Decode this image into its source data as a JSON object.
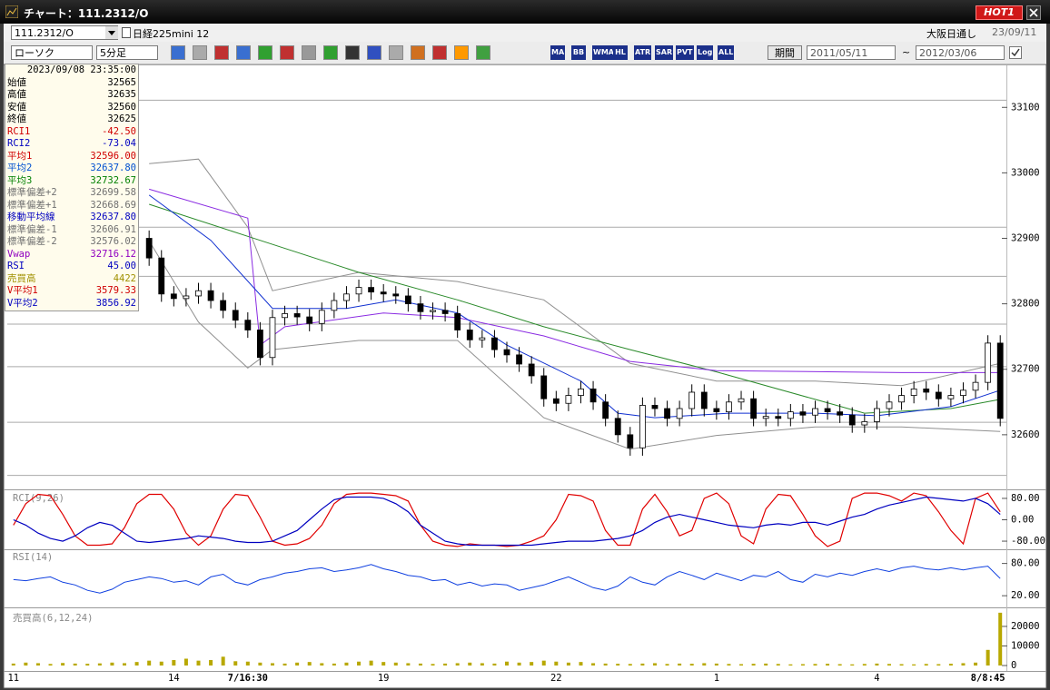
{
  "window": {
    "title": "チャート：111.2312/O",
    "hot_button": "HOT1"
  },
  "symbol_bar": {
    "code": "111.2312/O",
    "name": "日経225mini 12",
    "market": "大阪日通し",
    "date": "23/09/11"
  },
  "toolbar": {
    "chart_style": "ローソク",
    "interval": "5分足",
    "icons": [
      "MA",
      "BB",
      "WMA",
      "HL",
      "ATR",
      "SAR",
      "PVT",
      "Log",
      "ALL"
    ],
    "period_button": "期間",
    "start_date": "2011/05/11",
    "range_sep": "~",
    "end_date": "2012/03/06"
  },
  "info_panel": {
    "datetime": "2023/09/08 23:35:00",
    "rows": [
      {
        "label": "始値",
        "value": "32565",
        "color": "#000000"
      },
      {
        "label": "高値",
        "value": "32635",
        "color": "#000000"
      },
      {
        "label": "安値",
        "value": "32560",
        "color": "#000000"
      },
      {
        "label": "終値",
        "value": "32625",
        "color": "#000000"
      },
      {
        "label": "RCI1",
        "value": "-42.50",
        "color": "#d00000"
      },
      {
        "label": "RCI2",
        "value": "-73.04",
        "color": "#0000c0"
      },
      {
        "label": "平均1",
        "value": "32596.00",
        "color": "#d00000"
      },
      {
        "label": "平均2",
        "value": "32637.80",
        "color": "#0050d0"
      },
      {
        "label": "平均3",
        "value": "32732.67",
        "color": "#008000"
      },
      {
        "label": "標準偏差+2",
        "value": "32699.58",
        "color": "#707070"
      },
      {
        "label": "標準偏差+1",
        "value": "32668.69",
        "color": "#707070"
      },
      {
        "label": "移動平均線",
        "value": "32637.80",
        "color": "#0000c0"
      },
      {
        "label": "標準偏差-1",
        "value": "32606.91",
        "color": "#707070"
      },
      {
        "label": "標準偏差-2",
        "value": "32576.02",
        "color": "#707070"
      },
      {
        "label": "Vwap",
        "value": "32716.12",
        "color": "#9000c0"
      },
      {
        "label": "RSI",
        "value": "45.00",
        "color": "#0000c0"
      },
      {
        "label": "売買高",
        "value": "4422",
        "color": "#a09000"
      },
      {
        "label": "V平均1",
        "value": "3579.33",
        "color": "#d00000"
      },
      {
        "label": "V平均2",
        "value": "3856.92",
        "color": "#0000c0"
      }
    ]
  },
  "chart_data": {
    "type": "candlestick",
    "categories": [
      "11",
      null,
      null,
      null,
      null,
      null,
      null,
      null,
      null,
      null,
      null,
      null,
      null,
      "14",
      null,
      null,
      null,
      null,
      null,
      "7/16:30",
      null,
      null,
      null,
      null,
      null,
      null,
      null,
      null,
      null,
      null,
      "19",
      null,
      null,
      null,
      null,
      null,
      null,
      null,
      null,
      null,
      null,
      null,
      null,
      null,
      "22",
      null,
      null,
      null,
      null,
      null,
      null,
      null,
      null,
      null,
      null,
      null,
      null,
      "1",
      null,
      null,
      null,
      null,
      null,
      null,
      null,
      null,
      null,
      null,
      null,
      null,
      "4",
      null,
      null,
      null,
      null,
      null,
      null,
      null,
      null,
      "8/8:45",
      null
    ],
    "open": [
      null,
      null,
      null,
      null,
      null,
      null,
      null,
      null,
      null,
      null,
      null,
      32900,
      32870,
      32815,
      32808,
      32812,
      32820,
      32805,
      32790,
      32775,
      32760,
      32718,
      32779,
      32785,
      32780,
      32770,
      32790,
      32805,
      32815,
      32825,
      32818,
      32815,
      32812,
      32800,
      32788,
      32790,
      32785,
      32760,
      32745,
      32748,
      32730,
      32722,
      32708,
      32690,
      32655,
      32648,
      32660,
      32670,
      32650,
      32625,
      32600,
      32580,
      32645,
      32640,
      32625,
      32640,
      32665,
      32640,
      32635,
      32650,
      32655,
      32625,
      32628,
      32625,
      32635,
      32630,
      32640,
      32635,
      32630,
      32615,
      32620,
      32640,
      32650,
      32660,
      32670,
      32665,
      32655,
      32660,
      32668,
      32680,
      32740
    ],
    "high": [
      null,
      null,
      null,
      null,
      null,
      null,
      null,
      null,
      null,
      null,
      null,
      32912,
      32882,
      32827,
      32824,
      32832,
      32832,
      32817,
      32802,
      32787,
      32772,
      32791,
      32797,
      32797,
      32792,
      32802,
      32817,
      32827,
      32837,
      32837,
      32830,
      32827,
      32824,
      32812,
      32802,
      32802,
      32797,
      32772,
      32760,
      32760,
      32742,
      32734,
      32720,
      32702,
      32667,
      32672,
      32682,
      32682,
      32662,
      32637,
      32612,
      32657,
      32657,
      32652,
      32652,
      32677,
      32677,
      32652,
      32662,
      32667,
      32667,
      32640,
      32640,
      32647,
      32647,
      32652,
      32652,
      32647,
      32642,
      32632,
      32652,
      32662,
      32672,
      32682,
      32682,
      32677,
      32672,
      32680,
      32692,
      32752,
      32752
    ],
    "low": [
      null,
      null,
      null,
      null,
      null,
      null,
      null,
      null,
      null,
      null,
      null,
      32858,
      32803,
      32796,
      32796,
      32800,
      32793,
      32778,
      32763,
      32748,
      32706,
      32706,
      32767,
      32768,
      32758,
      32758,
      32778,
      32793,
      32803,
      32806,
      32803,
      32800,
      32788,
      32776,
      32776,
      32773,
      32748,
      32733,
      32733,
      32718,
      32710,
      32696,
      32678,
      32643,
      32636,
      32636,
      32648,
      32638,
      32613,
      32588,
      32568,
      32568,
      32628,
      32613,
      32613,
      32628,
      32628,
      32623,
      32623,
      32638,
      32613,
      32613,
      32613,
      32613,
      32618,
      32618,
      32623,
      32618,
      32603,
      32603,
      32608,
      32628,
      32638,
      32648,
      32653,
      32643,
      32643,
      32648,
      32656,
      32668,
      32613
    ],
    "close": [
      null,
      null,
      null,
      null,
      null,
      null,
      null,
      null,
      null,
      null,
      null,
      32870,
      32815,
      32808,
      32812,
      32820,
      32805,
      32790,
      32775,
      32760,
      32718,
      32779,
      32785,
      32780,
      32770,
      32790,
      32805,
      32815,
      32825,
      32818,
      32815,
      32812,
      32800,
      32788,
      32790,
      32785,
      32760,
      32745,
      32748,
      32730,
      32722,
      32708,
      32690,
      32655,
      32648,
      32660,
      32670,
      32650,
      32625,
      32600,
      32580,
      32645,
      32640,
      32625,
      32640,
      32665,
      32640,
      32635,
      32650,
      32655,
      32625,
      32628,
      32625,
      32635,
      32630,
      32640,
      32635,
      32630,
      32615,
      32620,
      32640,
      32650,
      32660,
      32670,
      32665,
      32655,
      32660,
      32668,
      32680,
      32740,
      32625
    ],
    "up_color": "#ffffff",
    "down_color": "#000000",
    "ylim": [
      32518,
      33160
    ],
    "yticks": [
      32600,
      32700,
      32800,
      32900,
      33000,
      33100
    ],
    "hlines": [
      33111,
      32917,
      32842,
      32769,
      32704,
      32619,
      32538
    ],
    "overlays": [
      {
        "color": "#909090",
        "x": [
          11,
          15,
          19,
          21,
          28,
          36,
          43,
          50,
          57,
          65,
          72,
          80
        ],
        "values": [
          33014,
          33021,
          32917,
          32820,
          32848,
          32834,
          32806,
          32709,
          32682,
          32682,
          32675,
          32709
        ]
      },
      {
        "color": "#909090",
        "x": [
          11,
          15,
          19,
          21,
          28,
          36,
          43,
          50,
          57,
          65,
          72,
          80
        ],
        "values": [
          32896,
          32772,
          32702,
          32730,
          32744,
          32744,
          32626,
          32578,
          32599,
          32612,
          32612,
          32605
        ]
      },
      {
        "color": "#2a8a2a",
        "x": [
          11,
          19,
          28,
          36,
          43,
          50,
          57,
          65,
          69,
          76,
          80
        ],
        "values": [
          32952,
          32903,
          32848,
          32806,
          32765,
          32730,
          32696,
          32654,
          32633,
          32640,
          32654
        ]
      },
      {
        "color": "#8a2be2",
        "x": [
          11,
          19,
          20,
          22,
          30,
          36,
          43,
          50,
          57,
          72,
          80
        ],
        "values": [
          32975,
          32931,
          32737,
          32765,
          32786,
          32779,
          32751,
          32712,
          32698,
          32695,
          32695
        ]
      },
      {
        "color": "#1030d0",
        "x": [
          11,
          16,
          21,
          27,
          31,
          36,
          40,
          46,
          49,
          52,
          58,
          65,
          70,
          76,
          80
        ],
        "values": [
          32966,
          32897,
          32793,
          32793,
          32806,
          32786,
          32737,
          32682,
          32633,
          32626,
          32633,
          32633,
          32629,
          32643,
          32668
        ]
      }
    ],
    "panels": {
      "rci": {
        "label": "RCI(9,26)",
        "ylim": [
          -107,
          107
        ],
        "yticks": [
          {
            "value": 80,
            "label": "80.00"
          },
          {
            "value": 0,
            "label": "0.00"
          },
          {
            "value": -80,
            "label": "-80.00"
          }
        ],
        "series": [
          {
            "color": "#e00000",
            "values": [
              -20,
              60,
              95,
              90,
              20,
              -60,
              -95,
              -95,
              -90,
              -30,
              60,
              95,
              95,
              40,
              -50,
              -95,
              -60,
              40,
              95,
              90,
              10,
              -80,
              -95,
              -90,
              -70,
              -20,
              60,
              95,
              100,
              100,
              95,
              90,
              70,
              -20,
              -80,
              -95,
              -100,
              -90,
              -95,
              -95,
              -100,
              -95,
              -80,
              -60,
              0,
              95,
              90,
              70,
              -40,
              -95,
              -95,
              40,
              95,
              30,
              -60,
              -40,
              80,
              100,
              60,
              -60,
              -90,
              40,
              95,
              90,
              20,
              -60,
              -100,
              -80,
              80,
              100,
              100,
              90,
              70,
              100,
              90,
              30,
              -40,
              -90,
              80,
              100,
              30
            ]
          },
          {
            "color": "#0000c0",
            "values": [
              0,
              -20,
              -50,
              -70,
              -80,
              -60,
              -30,
              -10,
              -20,
              -50,
              -80,
              -85,
              -80,
              -75,
              -70,
              -60,
              -65,
              -70,
              -80,
              -85,
              -85,
              -80,
              -60,
              -40,
              0,
              40,
              75,
              85,
              85,
              85,
              80,
              60,
              30,
              -20,
              -50,
              -80,
              -90,
              -95,
              -95,
              -95,
              -95,
              -95,
              -95,
              -90,
              -85,
              -80,
              -80,
              -80,
              -75,
              -70,
              -60,
              -40,
              -10,
              10,
              20,
              10,
              0,
              -10,
              -20,
              -25,
              -30,
              -20,
              -15,
              -20,
              -10,
              -10,
              -20,
              -5,
              10,
              20,
              40,
              55,
              65,
              75,
              85,
              80,
              75,
              70,
              80,
              60,
              20
            ]
          }
        ]
      },
      "rsi": {
        "label": "RSI(14)",
        "ylim": [
          0,
          103
        ],
        "yticks": [
          {
            "value": 80,
            "label": "80.00"
          },
          {
            "value": 20,
            "label": "20.00"
          }
        ],
        "series": [
          {
            "color": "#1040e0",
            "values": [
              50,
              48,
              52,
              55,
              45,
              40,
              30,
              25,
              32,
              45,
              50,
              55,
              52,
              45,
              48,
              40,
              55,
              60,
              45,
              40,
              50,
              55,
              62,
              65,
              70,
              72,
              65,
              68,
              72,
              78,
              70,
              65,
              58,
              55,
              48,
              50,
              40,
              45,
              38,
              42,
              40,
              30,
              35,
              40,
              48,
              55,
              45,
              35,
              30,
              38,
              55,
              45,
              40,
              55,
              65,
              58,
              50,
              62,
              55,
              48,
              58,
              55,
              65,
              50,
              45,
              60,
              55,
              62,
              58,
              65,
              70,
              65,
              72,
              75,
              70,
              68,
              72,
              68,
              72,
              75,
              52
            ]
          }
        ]
      },
      "volume": {
        "label": "売買高(6,12,24)",
        "ylim": [
          -2300,
          28800
        ],
        "yticks": [
          20000,
          10000,
          0
        ],
        "color": "#b8a800",
        "values": [
          1000,
          1500,
          1200,
          800,
          1300,
          1000,
          900,
          1100,
          1500,
          1200,
          1800,
          2500,
          2000,
          2800,
          3500,
          2500,
          2800,
          4500,
          2200,
          2000,
          1500,
          1200,
          1000,
          1500,
          1800,
          1200,
          1000,
          1500,
          2000,
          2500,
          1800,
          1500,
          1200,
          1000,
          800,
          1000,
          1200,
          1500,
          1200,
          1000,
          2000,
          1500,
          1800,
          2500,
          2000,
          1500,
          1800,
          1200,
          1000,
          900,
          800,
          1000,
          1200,
          800,
          1000,
          900,
          1200,
          1000,
          800,
          700,
          900,
          1000,
          800,
          600,
          700,
          800,
          900,
          700,
          600,
          800,
          1000,
          800,
          700,
          600,
          800,
          700,
          900,
          1200,
          1500,
          8000,
          27000
        ]
      }
    }
  }
}
